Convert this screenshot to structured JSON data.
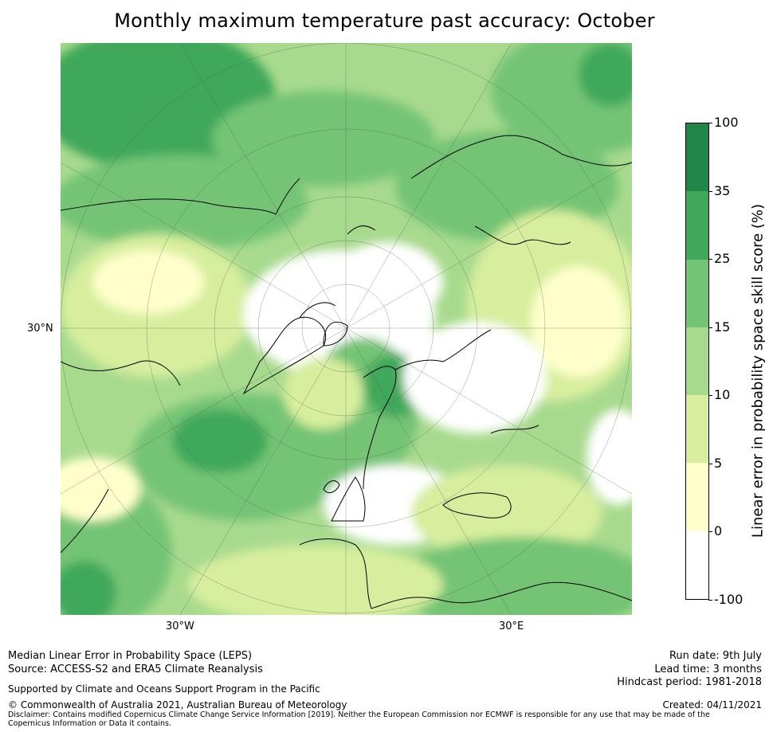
{
  "title": "Monthly maximum temperature past accuracy: October",
  "map": {
    "labels": {
      "lat_30n": "30°N",
      "lon_30w": "30°W",
      "lon_30e": "30°E"
    }
  },
  "colorbar": {
    "label": "Linear error in probability space skill score (%)",
    "ticks": [
      "100",
      "35",
      "25",
      "15",
      "10",
      "5",
      "0",
      "-100"
    ],
    "bins": [
      {
        "from": "35",
        "to": "100",
        "color": "#21864a"
      },
      {
        "from": "25",
        "to": "35",
        "color": "#3fa85a"
      },
      {
        "from": "15",
        "to": "25",
        "color": "#74c476"
      },
      {
        "from": "10",
        "to": "15",
        "color": "#a8da8e"
      },
      {
        "from": "5",
        "to": "10",
        "color": "#d7ee9e"
      },
      {
        "from": "0",
        "to": "5",
        "color": "#ffffcc"
      },
      {
        "from": "-100",
        "to": "0",
        "color": "#ffffff"
      }
    ]
  },
  "footer": {
    "left_line1": "Median Linear Error in Probability Space (LEPS)",
    "left_line2": "Source: ACCESS-S2 and ERA5 Climate Reanalysis",
    "supported": "Supported by Climate and Oceans Support Program in the Pacific",
    "copyright": "© Commonwealth of Australia 2021, Australian Bureau of Meteorology",
    "disclaimer": "Disclaimer: Contains modified Copernicus Climate Change Service Information [2019]. Neither the European Commission nor ECMWF is responsible for any use that may be made of the Copernicus Information or Data it contains.",
    "run_date": "Run date: 9th July",
    "lead_time": "Lead time: 3 months",
    "hindcast": "Hindcast period: 1981-2018",
    "created": "Created: 04/11/2021"
  }
}
